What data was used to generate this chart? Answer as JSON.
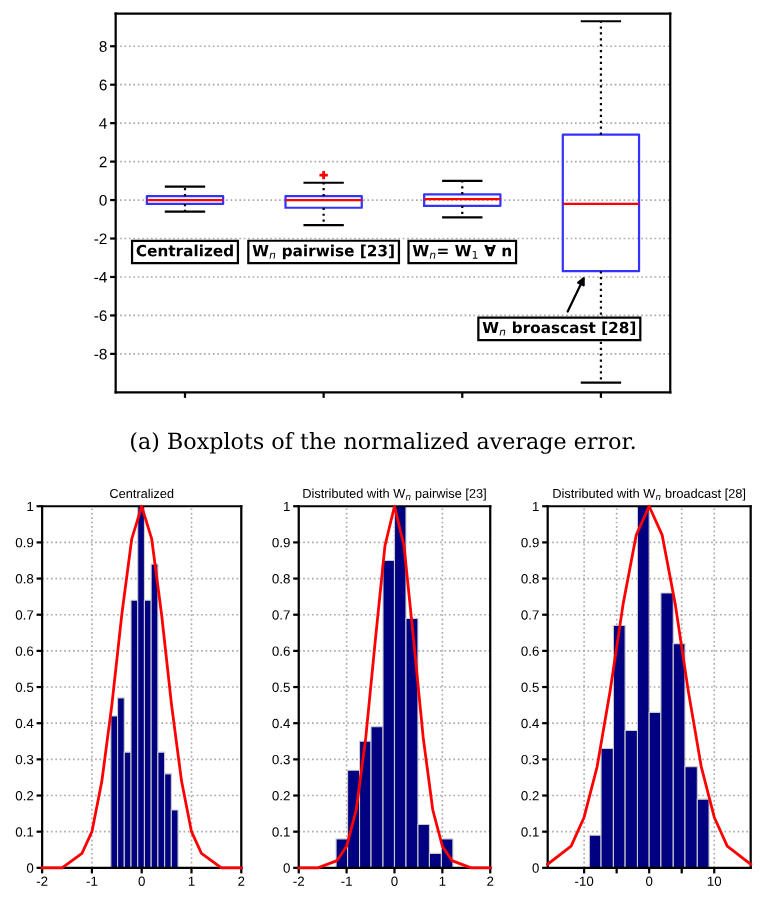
{
  "chart_data": [
    {
      "type": "box",
      "categories": [
        null,
        null,
        null,
        null
      ],
      "color": "#3333ff",
      "boxes": [
        {
          "low": -0.6,
          "q1": -0.2,
          "median": 0,
          "q3": 0.2,
          "high": 0.7
        },
        {
          "low": -1.3,
          "q1": -0.4,
          "median": 0,
          "q3": 0.2,
          "high": 0.9,
          "outliers": [
            1.3
          ]
        },
        {
          "low": -0.9,
          "q1": -0.3,
          "median": 0.05,
          "q3": 0.3,
          "high": 1.0
        },
        {
          "low": -9.5,
          "q1": -3.7,
          "median": -0.2,
          "q3": 3.4,
          "high": 9.3
        }
      ],
      "ylim": [
        -10,
        9.7
      ],
      "yticks": [
        -8,
        -6,
        -4,
        -2,
        0,
        2,
        4,
        6,
        8
      ],
      "grid": "y",
      "annotations": [
        "Centralized",
        "W$_{n}$ pairwise [23]",
        "W$_{n}$= W$_{1}$ ∀ n",
        "W$_{n}$ broascast [28]",
        "(a) Boxplots of the normalized average error."
      ]
    },
    {
      "type": "histogram",
      "title": "Centralized",
      "xlim": [
        -2,
        2
      ],
      "xticks": [
        -2,
        -1,
        0,
        1,
        2
      ],
      "ylim": [
        0,
        1
      ],
      "yticks": [
        0,
        0.1,
        0.2,
        0.3,
        0.4,
        0.5,
        0.6,
        0.7,
        0.8,
        0.9,
        1
      ],
      "grid": true,
      "series": [
        {
          "type": "histogram",
          "color": "#000080",
          "bins": [
            -0.62,
            -0.485,
            -0.35,
            -0.215,
            -0.08,
            0.055,
            0.19,
            0.325,
            0.46,
            0.595,
            0.73
          ],
          "values": [
            0.42,
            0.47,
            0.32,
            0.74,
            1.0,
            0.74,
            0.84,
            0.32,
            0.26,
            0.16
          ]
        },
        {
          "type": "line",
          "color": "#ff0000",
          "x": [
            -2,
            -1.6,
            -1.2,
            -1.0,
            -0.8,
            -0.6,
            -0.4,
            -0.2,
            0,
            0.2,
            0.4,
            0.6,
            0.8,
            1.0,
            1.2,
            1.6,
            2
          ],
          "values": [
            0,
            0,
            0.04,
            0.1,
            0.24,
            0.45,
            0.7,
            0.91,
            1,
            0.91,
            0.7,
            0.45,
            0.24,
            0.1,
            0.04,
            0,
            0
          ]
        }
      ]
    },
    {
      "type": "histogram",
      "title": "Distributed with W$_{n}$ pairwise [23]",
      "xlim": [
        -2,
        2
      ],
      "xticks": [
        -2,
        -1,
        0,
        1,
        2
      ],
      "ylim": [
        0,
        1
      ],
      "yticks": [
        0,
        0.1,
        0.2,
        0.3,
        0.4,
        0.5,
        0.6,
        0.7,
        0.8,
        0.9,
        1
      ],
      "grid": true,
      "series": [
        {
          "type": "histogram",
          "color": "#000080",
          "bins": [
            -1.22,
            -0.98,
            -0.73,
            -0.49,
            -0.24,
            0,
            0.24,
            0.49,
            0.73,
            0.98,
            1.22
          ],
          "values": [
            0.08,
            0.27,
            0.35,
            0.39,
            0.85,
            1.0,
            0.69,
            0.12,
            0.04,
            0.08
          ]
        },
        {
          "type": "line",
          "color": "#ff0000",
          "x": [
            -2,
            -1.6,
            -1.2,
            -1.0,
            -0.8,
            -0.6,
            -0.4,
            -0.2,
            0,
            0.2,
            0.4,
            0.6,
            0.8,
            1.0,
            1.2,
            1.6,
            2
          ],
          "values": [
            0,
            0,
            0.02,
            0.06,
            0.16,
            0.36,
            0.63,
            0.89,
            1,
            0.89,
            0.63,
            0.36,
            0.16,
            0.06,
            0.02,
            0,
            0
          ]
        }
      ]
    },
    {
      "type": "histogram",
      "title": "Distributed with W$_{n}$ broadcast [28]",
      "xlim": [
        -15.6,
        15.6
      ],
      "xticks": [
        -10,
        {
          "value": -5,
          "label": null
        },
        0,
        {
          "value": 5,
          "label": null
        },
        10
      ],
      "ylim": [
        0,
        1
      ],
      "yticks": [
        0,
        0.1,
        0.2,
        0.3,
        0.4,
        0.5,
        0.6,
        0.7,
        0.8,
        0.9,
        1
      ],
      "grid": true,
      "series": [
        {
          "type": "histogram",
          "color": "#000080",
          "bins": [
            -9.2,
            -7.4,
            -5.5,
            -3.7,
            -1.8,
            0,
            1.8,
            3.7,
            5.5,
            7.4,
            9.2
          ],
          "values": [
            0.09,
            0.33,
            0.67,
            0.38,
            1.0,
            0.43,
            0.76,
            0.62,
            0.28,
            0.19
          ]
        },
        {
          "type": "line",
          "color": "#ff0000",
          "x": [
            -15.6,
            -12,
            -10,
            -8,
            -6,
            -4,
            -2,
            0,
            2,
            4,
            6,
            8,
            10,
            12,
            15.6
          ],
          "values": [
            0.01,
            0.06,
            0.14,
            0.28,
            0.49,
            0.73,
            0.92,
            1,
            0.92,
            0.73,
            0.49,
            0.28,
            0.14,
            0.06,
            0.01
          ]
        }
      ]
    }
  ]
}
